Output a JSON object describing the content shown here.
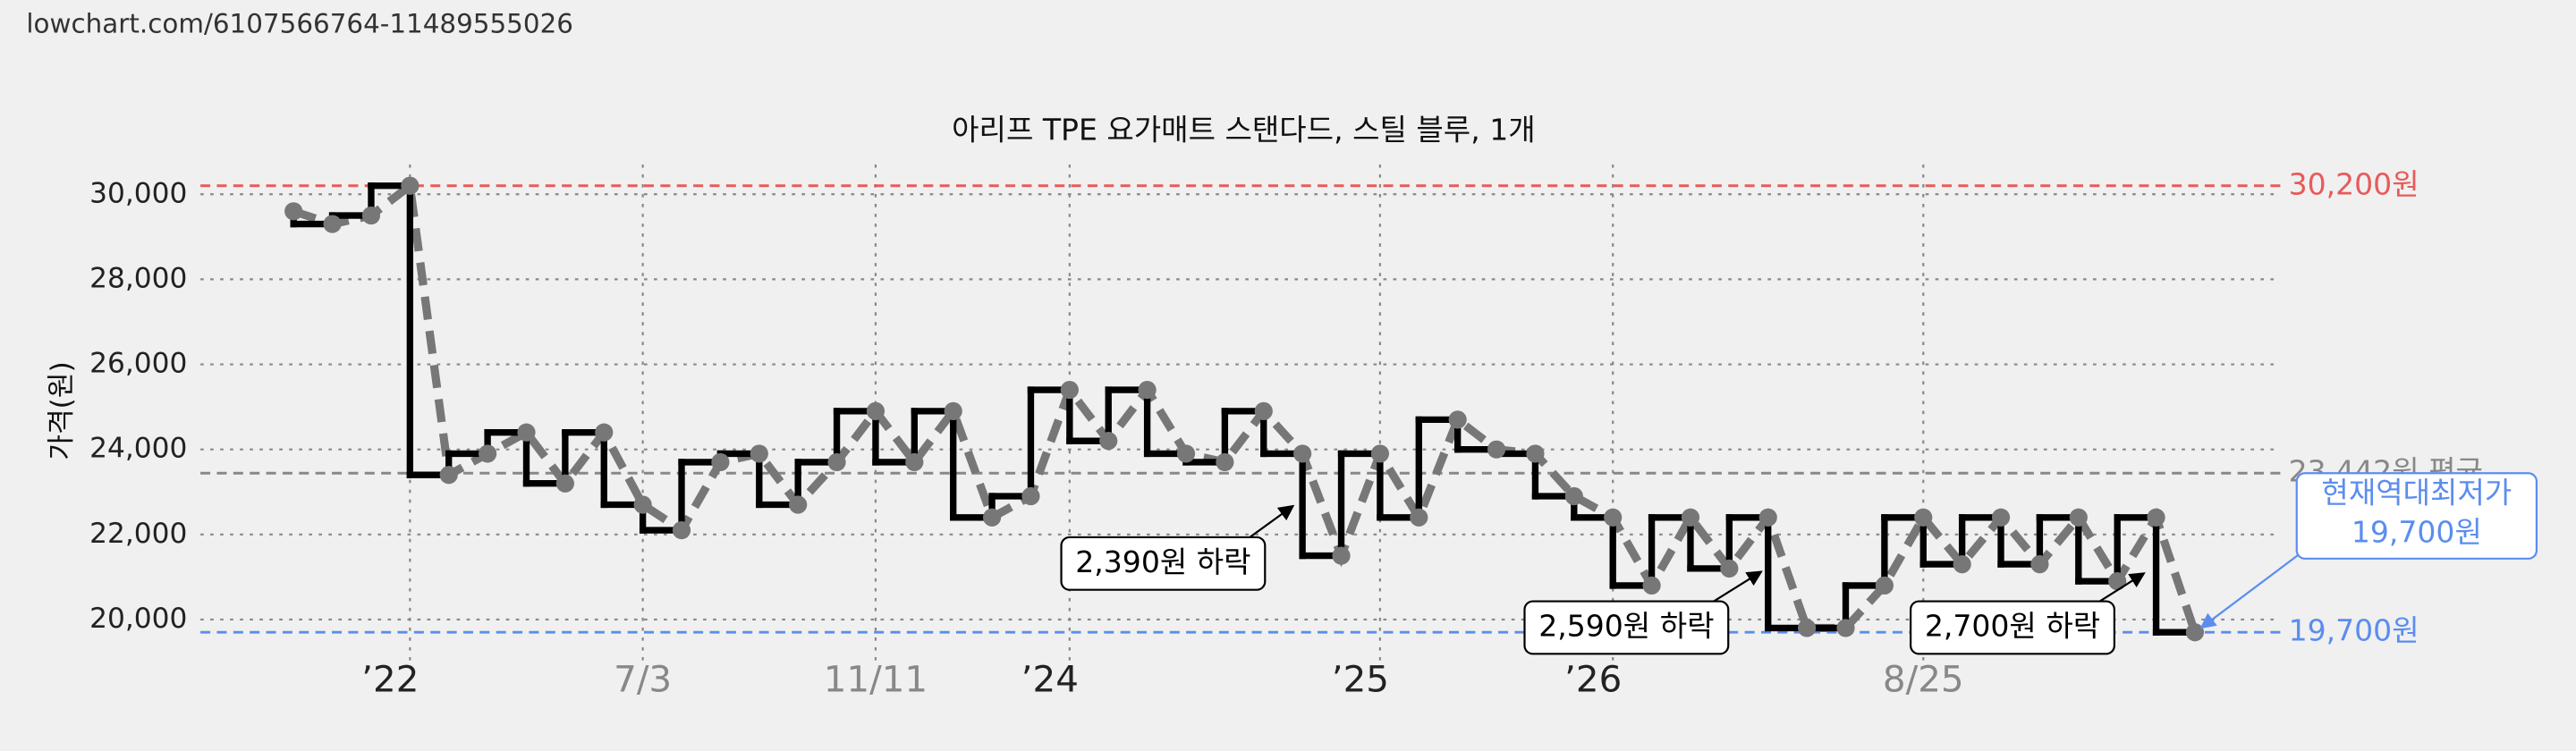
{
  "header": {
    "url": "lowchart.com/6107566764-11489555026"
  },
  "chart_data": {
    "type": "step-line",
    "title": "아리프 TPE 요가매트 스탠다드, 스틸 블루, 1개",
    "y_label": "가격(원)",
    "x": [
      0,
      1,
      2,
      3,
      4,
      5,
      6,
      7,
      8,
      9,
      10,
      11,
      12,
      13,
      14,
      15,
      16,
      17,
      18,
      19,
      20,
      21,
      22,
      23,
      24,
      25,
      26,
      27,
      28,
      29,
      30,
      31,
      32,
      33,
      34,
      35,
      36,
      37,
      38,
      39,
      40,
      41,
      42,
      43,
      44,
      45,
      46,
      47,
      48,
      49
    ],
    "series": [
      {
        "color": "#000000",
        "marker_color": "#777777",
        "values": [
          29600,
          29300,
          29500,
          30200,
          23400,
          23900,
          24400,
          23200,
          24400,
          22700,
          22100,
          23700,
          23900,
          22700,
          23700,
          24900,
          23700,
          24900,
          22400,
          22900,
          25400,
          24200,
          25400,
          23900,
          23700,
          24900,
          23900,
          21500,
          23900,
          22400,
          24700,
          24000,
          23900,
          22900,
          22400,
          20800,
          22400,
          21200,
          22400,
          19800,
          19800,
          20800,
          22400,
          21300,
          22400,
          21300,
          22400,
          20900,
          22400,
          19700
        ]
      }
    ],
    "xlim": [
      -2.4,
      51.2
    ],
    "xticks": [
      {
        "value": 3,
        "label": "’22"
      },
      {
        "value": 9,
        "label": "7/3"
      },
      {
        "value": 15,
        "label": "11/11"
      },
      {
        "value": 20,
        "label": "’24"
      },
      {
        "value": 28,
        "label": "’25"
      },
      {
        "value": 34,
        "label": "’26"
      },
      {
        "value": 42,
        "label": "8/25"
      }
    ],
    "ylim": [
      19000,
      30700
    ],
    "yticks": [
      {
        "value": 20000,
        "label": "20,000"
      },
      {
        "value": 22000,
        "label": "22,000"
      },
      {
        "value": 24000,
        "label": "24,000"
      },
      {
        "value": 26000,
        "label": "26,000"
      },
      {
        "value": 28000,
        "label": "28,000"
      },
      {
        "value": 30000,
        "label": "30,000"
      }
    ],
    "grid": true,
    "reference_lines": [
      {
        "value": 30200,
        "label": "30,200원",
        "color": "#e85a5a"
      },
      {
        "value": 23442,
        "label": "23,442원 평균",
        "color": "#888888"
      },
      {
        "value": 19700,
        "label": "19,700원",
        "color": "#5b8def"
      }
    ],
    "annotations": [
      "2,390원 하락",
      "2,590원 하락",
      "2,700원 하락"
    ],
    "lowest_note": [
      "현재역대최저가",
      "19,700원"
    ]
  }
}
